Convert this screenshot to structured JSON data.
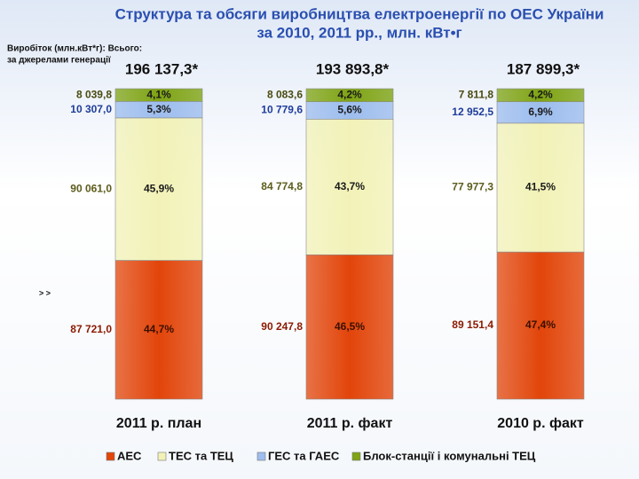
{
  "chart_data": {
    "type": "stacked_bar_percent",
    "title": [
      "Структура та обсяги виробництва електроенергії по ОЕС України",
      "за  2010, 2011 рр., млн. кВт•г"
    ],
    "subtitle": [
      "Виробіток (млн.кВт*г): Всього:",
      "за джерелами генерації"
    ],
    "annotation": "> >",
    "categories": [
      "2011 р. план",
      "2011 р. факт",
      "2010 р. факт"
    ],
    "totals": [
      "196 137,3*",
      "193 893,8*",
      "187 899,3*"
    ],
    "ylim": [
      0,
      100
    ],
    "series": [
      {
        "name": "АЕС",
        "color": "#e2450a",
        "label_color": "#8b1a00",
        "values": [
          44.7,
          46.5,
          47.4
        ],
        "value_labels": [
          "44,7%",
          "46,5%",
          "47,4%"
        ],
        "amounts": [
          "87 721,0",
          "90 247,8",
          "89 151,4"
        ]
      },
      {
        "name": "ТЕС та ТЕЦ",
        "color": "#f2f2b8",
        "label_color": "#5c5c1c",
        "values": [
          45.9,
          43.7,
          41.5
        ],
        "value_labels": [
          "45,9%",
          "43,7%",
          "41,5%"
        ],
        "amounts": [
          "90 061,0",
          "84 774,8",
          "77 977,3"
        ]
      },
      {
        "name": "ГЕС та ГАЕС",
        "color": "#9dbdee",
        "label_color": "#1f3c9a",
        "values": [
          5.3,
          5.6,
          6.9
        ],
        "value_labels": [
          "5,3%",
          "5,6%",
          "6,9%"
        ],
        "amounts": [
          "10 307,0",
          "10 779,6",
          "12 952,5"
        ]
      },
      {
        "name": "Блок-станції і комунальні ТЕЦ",
        "color": "#7fa414",
        "label_color": "#4a4a10",
        "values": [
          4.1,
          4.2,
          4.2
        ],
        "value_labels": [
          "4,1%",
          "4,2%",
          "4,2%"
        ],
        "amounts": [
          "8 039,8",
          "8 083,6",
          "7 811,8"
        ]
      }
    ]
  }
}
